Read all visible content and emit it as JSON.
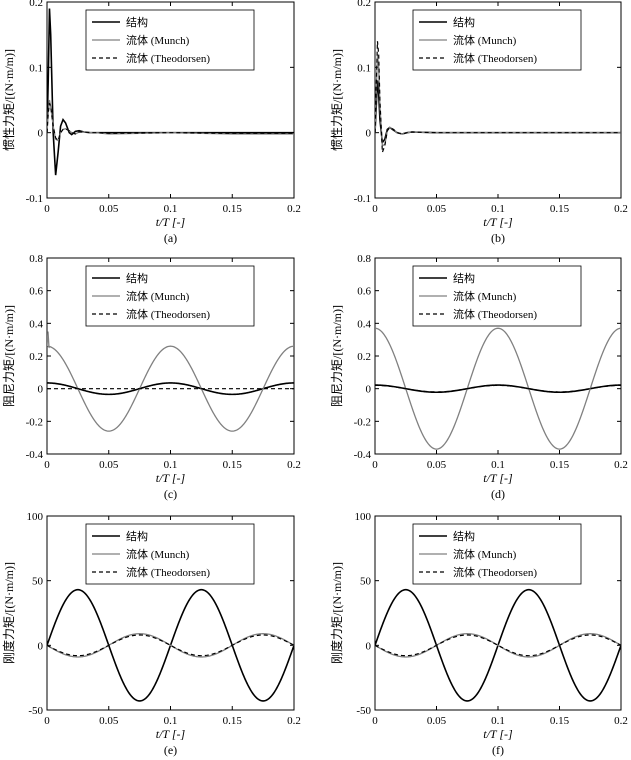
{
  "chart_data": [
    {
      "type": "line",
      "caption": "(a)",
      "xlabel": "t/T [-]",
      "ylabel": "惯性力矩/[(N·m/m)]",
      "xlim": [
        0,
        0.2
      ],
      "ylim": [
        -0.1,
        0.2
      ],
      "xticks": [
        "0",
        "0.05",
        "0.1",
        "0.15",
        "0.2"
      ],
      "yticks": [
        "-0.1",
        "0",
        "0.1",
        "0.2"
      ],
      "legend": "top-right",
      "series": [
        {
          "name": "结构",
          "color": "#000000",
          "dash": "solid",
          "width": 1.6,
          "x": [
            0,
            0.001,
            0.002,
            0.003,
            0.005,
            0.007,
            0.009,
            0.011,
            0.013,
            0.015,
            0.018,
            0.02,
            0.023,
            0.026,
            0.03,
            0.035,
            0.04,
            0.05,
            0.1,
            0.15,
            0.2
          ],
          "y": [
            0,
            0.08,
            0.19,
            0.15,
            0.0,
            -0.065,
            -0.03,
            0.01,
            0.02,
            0.015,
            0.0,
            -0.003,
            0.002,
            0.003,
            0.001,
            0.0,
            0.0,
            0.0,
            0.0,
            0.0,
            0.0
          ]
        },
        {
          "name": "流体 (Munch)",
          "color": "#808080",
          "dash": "solid",
          "width": 1.3,
          "x": [
            0,
            0.001,
            0.002,
            0.003,
            0.005,
            0.007,
            0.009,
            0.011,
            0.013,
            0.015,
            0.018,
            0.02,
            0.023,
            0.026,
            0.03,
            0.035,
            0.04,
            0.05,
            0.1,
            0.15,
            0.2
          ],
          "y": [
            0,
            0.03,
            0.05,
            0.04,
            0.01,
            -0.01,
            -0.012,
            0.0,
            0.005,
            0.006,
            0.003,
            0.0,
            -0.002,
            0.001,
            0.001,
            0.0,
            0.0,
            -0.002,
            0.0,
            -0.002,
            -0.002
          ]
        },
        {
          "name": "流体 (Theodorsen)",
          "color": "#000000",
          "dash": "4,3",
          "width": 1.2,
          "x": [
            0,
            0.001,
            0.002,
            0.003,
            0.005,
            0.007,
            0.009,
            0.011,
            0.013,
            0.015,
            0.018,
            0.02,
            0.023,
            0.026,
            0.03,
            0.035,
            0.04,
            0.05,
            0.1,
            0.15,
            0.2
          ],
          "y": [
            0,
            0.03,
            0.045,
            0.04,
            0.01,
            -0.008,
            -0.012,
            0.0,
            0.005,
            0.006,
            0.003,
            0.0,
            -0.002,
            0.001,
            0.001,
            0.0,
            0.0,
            -0.001,
            0.0,
            -0.001,
            -0.001
          ]
        }
      ]
    },
    {
      "type": "line",
      "caption": "(b)",
      "xlabel": "t/T [-]",
      "ylabel": "惯性力矩/[(N·m/m)]",
      "xlim": [
        0,
        0.2
      ],
      "ylim": [
        -0.1,
        0.2
      ],
      "xticks": [
        "0",
        "0.05",
        "0.1",
        "0.15",
        "0.2"
      ],
      "yticks": [
        "-0.1",
        "0",
        "0.1",
        "0.2"
      ],
      "legend": "top-right",
      "series": [
        {
          "name": "结构",
          "color": "#000000",
          "dash": "solid",
          "width": 1.6,
          "x": [
            0,
            0.001,
            0.002,
            0.003,
            0.004,
            0.006,
            0.008,
            0.01,
            0.012,
            0.015,
            0.018,
            0.022,
            0.026,
            0.03,
            0.05,
            0.1,
            0.15,
            0.2
          ],
          "y": [
            0,
            0.04,
            0.08,
            0.06,
            0.02,
            -0.015,
            -0.01,
            0.005,
            0.008,
            0.004,
            0.0,
            -0.002,
            0.0,
            0.001,
            0.0,
            0.0,
            0.0,
            0.0
          ]
        },
        {
          "name": "流体 (Munch)",
          "color": "#808080",
          "dash": "solid",
          "width": 1.3,
          "x": [
            0,
            0.001,
            0.002,
            0.003,
            0.004,
            0.006,
            0.008,
            0.01,
            0.012,
            0.015,
            0.018,
            0.022,
            0.026,
            0.03,
            0.05,
            0.1,
            0.15,
            0.2
          ],
          "y": [
            0,
            0.06,
            0.12,
            0.1,
            0.04,
            -0.02,
            -0.018,
            0.003,
            0.008,
            0.005,
            0.0,
            -0.002,
            0.0,
            0.001,
            0.0,
            0.0,
            0.0,
            0.0
          ]
        },
        {
          "name": "流体 (Theodorsen)",
          "color": "#000000",
          "dash": "4,3",
          "width": 1.2,
          "x": [
            0,
            0.001,
            0.002,
            0.003,
            0.004,
            0.006,
            0.008,
            0.01,
            0.012,
            0.015,
            0.018,
            0.022,
            0.026,
            0.03,
            0.05,
            0.1,
            0.15,
            0.2
          ],
          "y": [
            0,
            0.07,
            0.14,
            0.12,
            0.05,
            -0.03,
            -0.02,
            0.003,
            0.008,
            0.005,
            0.0,
            -0.002,
            0.0,
            0.001,
            0.0,
            0.0,
            0.0,
            0.0
          ]
        }
      ]
    },
    {
      "type": "line",
      "caption": "(c)",
      "xlabel": "t/T [-]",
      "ylabel": "阻尼力矩/[(N·m/m)]",
      "xlim": [
        0,
        0.2
      ],
      "ylim": [
        -0.4,
        0.8
      ],
      "xticks": [
        "0",
        "0.05",
        "0.1",
        "0.15",
        "0.2"
      ],
      "yticks": [
        "-0.4",
        "-0.2",
        "0",
        "0.2",
        "0.4",
        "0.6",
        "0.8"
      ],
      "legend": "top-right",
      "series": [
        {
          "name": "结构",
          "color": "#000000",
          "dash": "solid",
          "width": 1.6,
          "formula": {
            "amp": 0.035,
            "shape": "cos",
            "period": 0.1
          }
        },
        {
          "name": "流体 (Munch)",
          "color": "#808080",
          "dash": "solid",
          "width": 1.3,
          "formula": {
            "amp": 0.26,
            "shape": "cos",
            "period": 0.1,
            "spike_at_0": 0.35
          }
        },
        {
          "name": "流体 (Theodorsen)",
          "color": "#000000",
          "dash": "4,3",
          "width": 1.2,
          "formula": {
            "amp": 0.0,
            "shape": "cos",
            "period": 0.1
          }
        }
      ]
    },
    {
      "type": "line",
      "caption": "(d)",
      "xlabel": "t/T [-]",
      "ylabel": "阻尼力矩/[(N·m/m)]",
      "xlim": [
        0,
        0.2
      ],
      "ylim": [
        -0.4,
        0.8
      ],
      "xticks": [
        "0",
        "0.05",
        "0.1",
        "0.15",
        "0.2"
      ],
      "yticks": [
        "-0.4",
        "-0.2",
        "0",
        "0.2",
        "0.4",
        "0.6",
        "0.8"
      ],
      "legend": "top-right",
      "series": [
        {
          "name": "结构",
          "color": "#000000",
          "dash": "solid",
          "width": 1.6,
          "formula": {
            "amp": 0.022,
            "shape": "cos",
            "period": 0.1
          }
        },
        {
          "name": "流体 (Munch)",
          "color": "#808080",
          "dash": "solid",
          "width": 1.3,
          "formula": {
            "amp": 0.37,
            "shape": "cos",
            "period": 0.1
          }
        },
        {
          "name": "流体 (Theodorsen)",
          "color": "#000000",
          "dash": "4,3",
          "width": 1.2,
          "formula": {
            "amp": 0.02,
            "shape": "cos",
            "period": 0.1
          }
        }
      ]
    },
    {
      "type": "line",
      "caption": "(e)",
      "xlabel": "t/T [-]",
      "ylabel": "刚度力矩/[(N·m/m)]",
      "xlim": [
        0,
        0.2
      ],
      "ylim": [
        -50,
        100
      ],
      "xticks": [
        "0",
        "0.05",
        "0.1",
        "0.15",
        "0.2"
      ],
      "yticks": [
        "-50",
        "0",
        "50",
        "100"
      ],
      "legend": "top-right",
      "series": [
        {
          "name": "结构",
          "color": "#000000",
          "dash": "solid",
          "width": 1.6,
          "formula": {
            "amp": 43,
            "shape": "sin",
            "period": 0.1
          }
        },
        {
          "name": "流体 (Munch)",
          "color": "#808080",
          "dash": "solid",
          "width": 1.3,
          "formula": {
            "amp": -9,
            "shape": "sin",
            "period": 0.1
          }
        },
        {
          "name": "流体 (Theodorsen)",
          "color": "#000000",
          "dash": "4,3",
          "width": 1.2,
          "formula": {
            "amp": -8,
            "shape": "sin",
            "period": 0.1
          }
        }
      ]
    },
    {
      "type": "line",
      "caption": "(f)",
      "xlabel": "t/T [-]",
      "ylabel": "刚度力矩/[(N·m/m)]",
      "xlim": [
        0,
        0.2
      ],
      "ylim": [
        -50,
        100
      ],
      "xticks": [
        "0",
        "0.05",
        "0.1",
        "0.15",
        "0.2"
      ],
      "yticks": [
        "-50",
        "0",
        "50",
        "100"
      ],
      "legend": "top-right",
      "series": [
        {
          "name": "结构",
          "color": "#000000",
          "dash": "solid",
          "width": 1.6,
          "formula": {
            "amp": 43,
            "shape": "sin",
            "period": 0.1
          }
        },
        {
          "name": "流体 (Munch)",
          "color": "#808080",
          "dash": "solid",
          "width": 1.3,
          "formula": {
            "amp": -9,
            "shape": "sin",
            "period": 0.1
          }
        },
        {
          "name": "流体 (Theodorsen)",
          "color": "#000000",
          "dash": "4,3",
          "width": 1.2,
          "formula": {
            "amp": -8,
            "shape": "sin",
            "period": 0.1
          }
        }
      ]
    }
  ]
}
